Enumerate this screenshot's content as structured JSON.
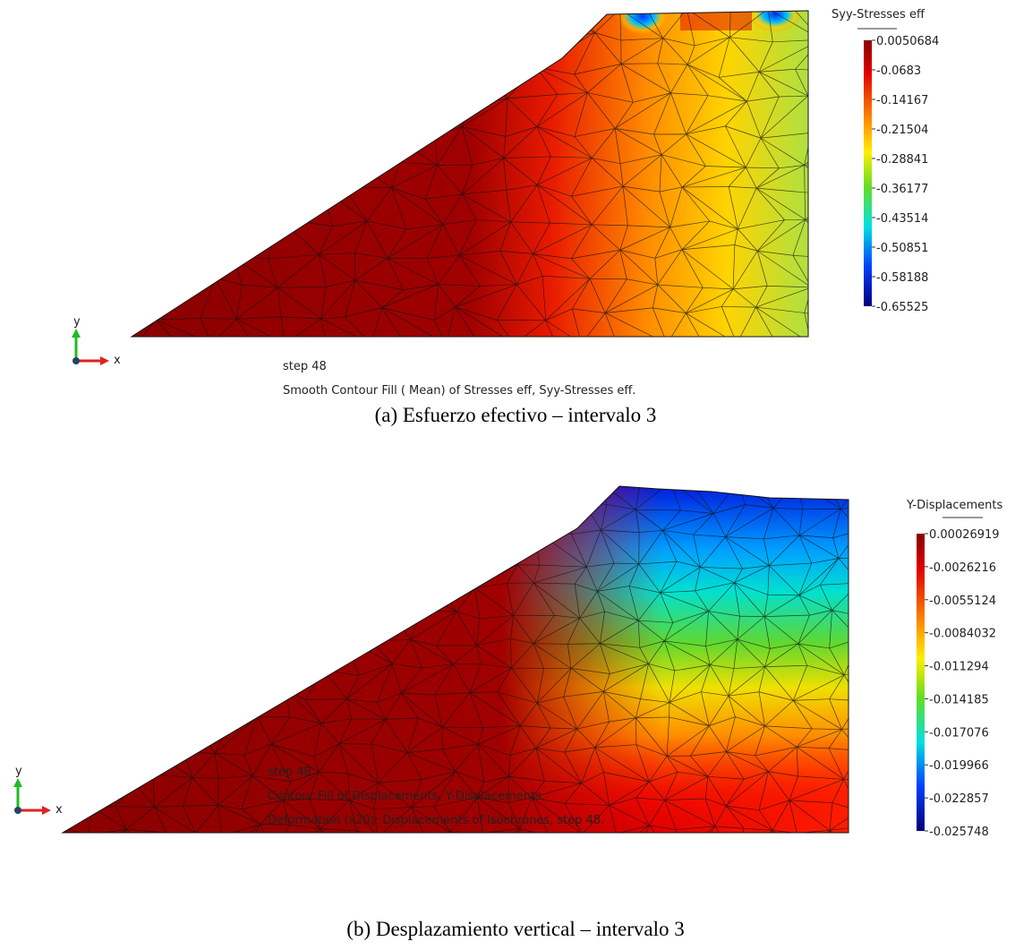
{
  "panels": [
    {
      "legend": {
        "title": "Syy-Stresses eff",
        "labels": [
          "0.0050684",
          "-0.0683",
          "-0.14167",
          "-0.21504",
          "-0.28841",
          "-0.36177",
          "-0.43514",
          "-0.50851",
          "-0.58188",
          "-0.65525"
        ]
      },
      "axes": {
        "x": "x",
        "y": "y"
      },
      "notes": [
        "step 48",
        "Smooth Contour Fill ( Mean) of Stresses eff, Syy-Stresses eff."
      ],
      "caption": "(a) Esfuerzo efectivo – intervalo 3"
    },
    {
      "legend": {
        "title": "Y-Displacements",
        "labels": [
          "0.00026919",
          "-0.0026216",
          "-0.0055124",
          "-0.0084032",
          "-0.011294",
          "-0.014185",
          "-0.017076",
          "-0.019966",
          "-0.022857",
          "-0.025748"
        ]
      },
      "axes": {
        "x": "x",
        "y": "y"
      },
      "notes": [
        "step 48",
        "Contour Fill of Displacements, Y-Displacements.",
        "Deformation (x20): Displacements of Isochrones, step 48."
      ],
      "caption": "(b) Desplazamiento vertical – intervalo 3"
    }
  ]
}
